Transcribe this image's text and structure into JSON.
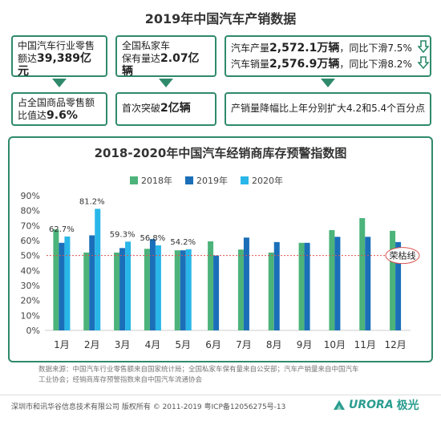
{
  "page_title": "2019年中国汽车产销数据",
  "summary": {
    "box1_line1": "中国汽车行业零售",
    "box1_prefix": "额达",
    "box1_value": "39,389亿元",
    "box1b_line1": "占全国商品零售额",
    "box1b_prefix": "比值达",
    "box1b_value": "9.6%",
    "box2_line1": "全国私家车",
    "box2_prefix": "保有量达",
    "box2_value": "2.07亿辆",
    "box2b_prefix": "首次突破",
    "box2b_value": "2亿辆",
    "box3_prod_prefix": "汽车产量",
    "box3_prod_value": "2,572.1万辆",
    "box3_prod_change": "，同比下滑7.5%",
    "box3_sales_prefix": "汽车销量",
    "box3_sales_value": "2,576.9万辆",
    "box3_sales_change": "，同比下滑8.2%",
    "box3b_text": "产销量降幅比上年分别扩大4.2和5.4个百分点"
  },
  "colors": {
    "border": "#2f8a6b",
    "y2018": "#4cb37a",
    "y2019": "#1a6fb8",
    "y2020": "#29b6e8",
    "threshold": "#d9534f"
  },
  "chart_data": {
    "type": "bar",
    "title": "2018-2020年中国汽车经销商库存预警指数图",
    "categories": [
      "1月",
      "2月",
      "3月",
      "4月",
      "5月",
      "6月",
      "7月",
      "8月",
      "9月",
      "10月",
      "11月",
      "12月"
    ],
    "series": [
      {
        "name": "2018年",
        "values": [
          67.5,
          52,
          52,
          54.5,
          53.5,
          59.5,
          54,
          52,
          58.5,
          67,
          75,
          66.5
        ]
      },
      {
        "name": "2019年",
        "values": [
          58.5,
          63.5,
          55,
          61,
          53.5,
          50,
          62,
          59,
          58.5,
          62.5,
          62.5,
          59
        ]
      },
      {
        "name": "2020年",
        "values": [
          62.7,
          81.2,
          59.3,
          56.8,
          54.2,
          null,
          null,
          null,
          null,
          null,
          null,
          null
        ]
      }
    ],
    "data_labels": [
      {
        "category": "1月",
        "text": "62.7%"
      },
      {
        "category": "2月",
        "text": "81.2%"
      },
      {
        "category": "3月",
        "text": "59.3%"
      },
      {
        "category": "4月",
        "text": "56.8%"
      },
      {
        "category": "5月",
        "text": "54.2%"
      }
    ],
    "ylim": [
      0,
      90
    ],
    "yticks": [
      "0%",
      "10%",
      "20%",
      "30%",
      "40%",
      "50%",
      "60%",
      "70%",
      "80%",
      "90%"
    ],
    "threshold_value": 50,
    "threshold_label": "荣枯线",
    "legend_position": "top"
  },
  "footnote_line1": "数据来源：中国汽车行业零售额来自国家统计局；全国私家车保有量来自公安部；汽车产销量来自中国汽车",
  "footnote_line2": "工业协会；经销商库存预警指数来自中国汽车流通协会",
  "copyright": "深圳市和讯华谷信息技术有限公司 版权所有 © 2011-2019 粤ICP备12056275号-13",
  "brand_latin": "URORA",
  "brand_cn": "极光"
}
